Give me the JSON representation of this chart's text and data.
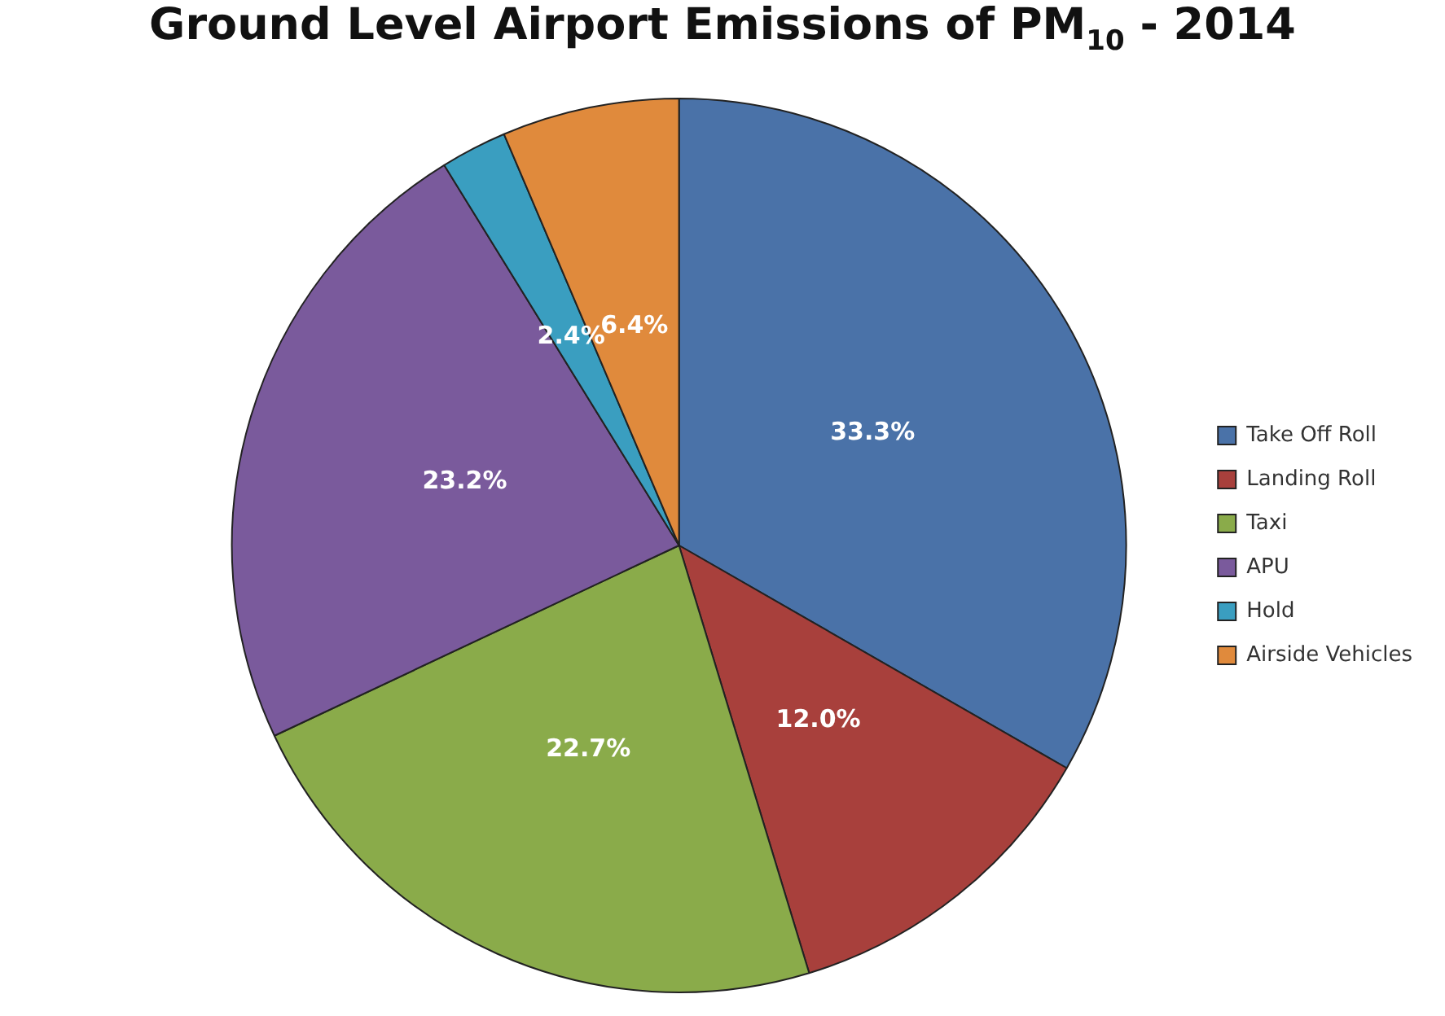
{
  "chart_data": {
    "type": "pie",
    "title": "Ground Level Airport Emissions of PM$_{10}$ - 2014",
    "categories": [
      "Take Off Roll",
      "Landing Roll",
      "Taxi",
      "APU",
      "Hold",
      "Airside Vehicles"
    ],
    "values": [
      33.3,
      12.0,
      22.7,
      23.2,
      2.4,
      6.4
    ],
    "value_labels": [
      "33.3%",
      "12.0%",
      "22.7%",
      "23.2%",
      "2.4%",
      "6.4%"
    ],
    "colors": [
      "#4a72a8",
      "#a8403c",
      "#8aab4a",
      "#7a5a9c",
      "#3a9ec0",
      "#e08a3c"
    ],
    "legend": "right"
  }
}
